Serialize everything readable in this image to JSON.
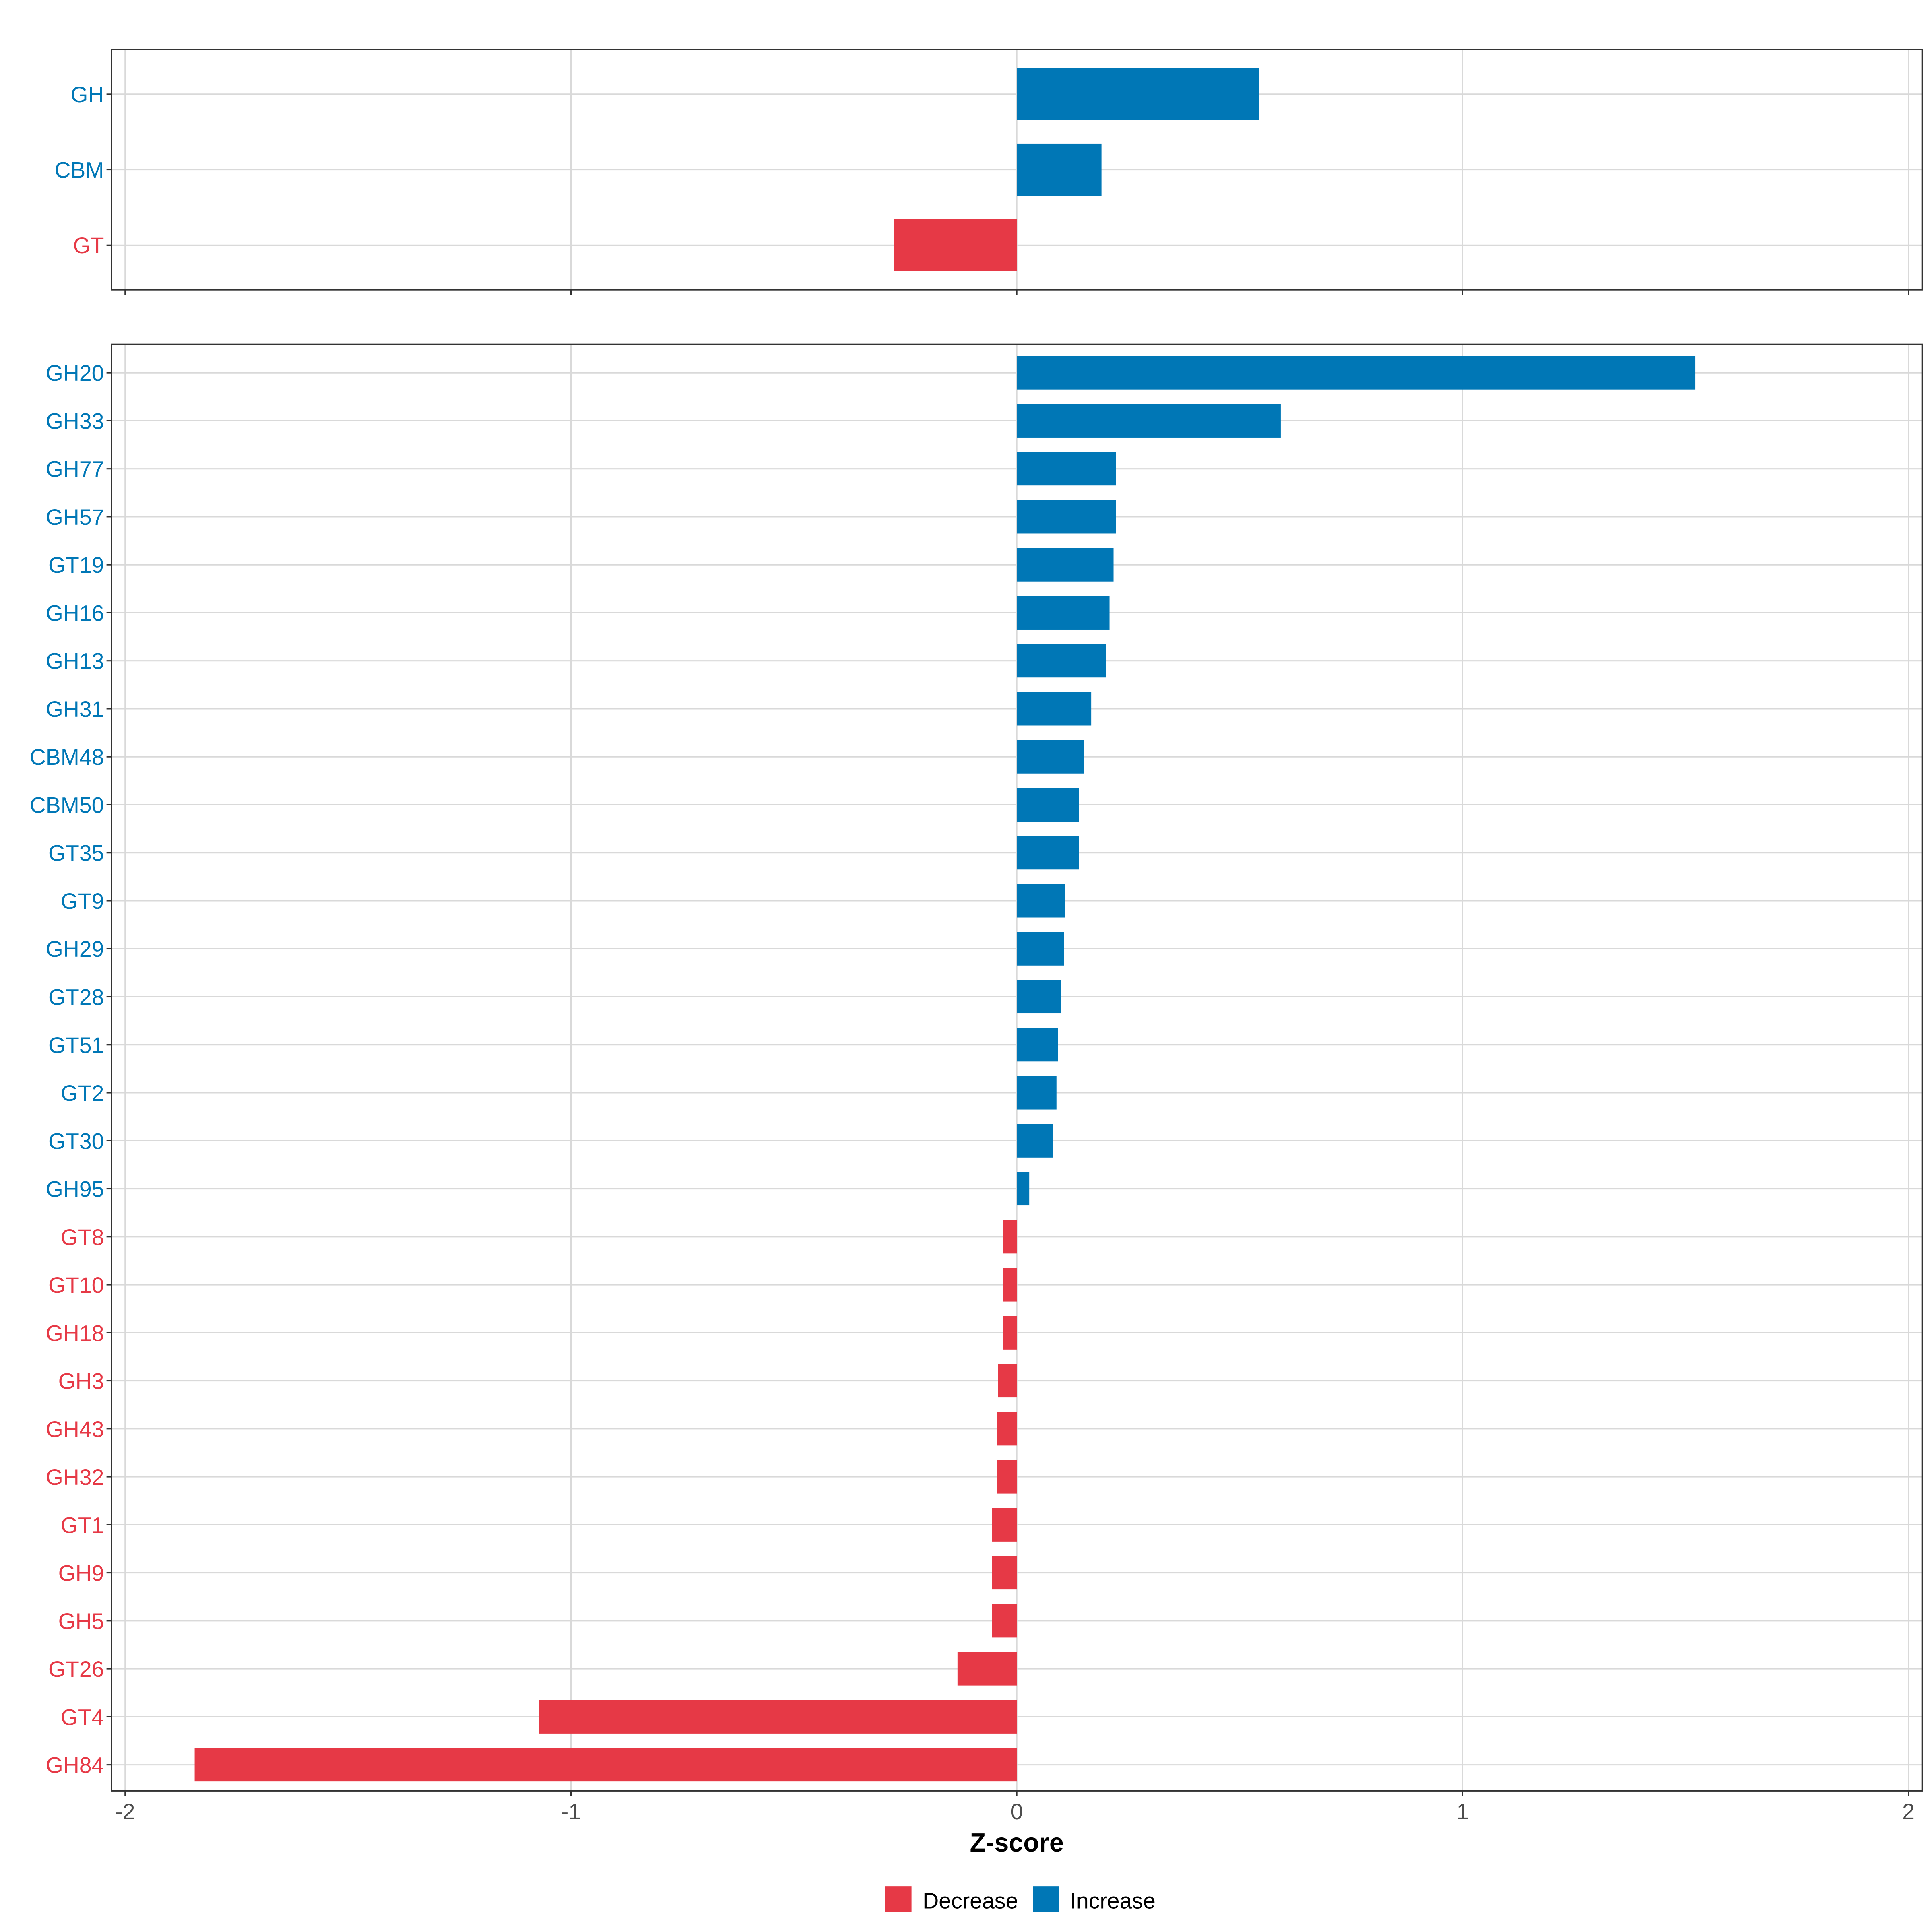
{
  "chart_data": [
    {
      "type": "bar",
      "orientation": "horizontal",
      "panel": "top",
      "categories": [
        "GH",
        "CBM",
        "GT"
      ],
      "values": [
        0.544,
        0.19,
        -0.275
      ],
      "xlim": [
        -2,
        2
      ],
      "xticks": [
        -2,
        -1,
        0,
        1,
        2
      ],
      "show_tick_labels": false,
      "grid": true
    },
    {
      "type": "bar",
      "orientation": "horizontal",
      "panel": "bottom",
      "categories": [
        "GH20",
        "GH33",
        "GH77",
        "GH57",
        "GT19",
        "GH16",
        "GH13",
        "GH31",
        "CBM48",
        "CBM50",
        "GT35",
        "GT9",
        "GH29",
        "GT28",
        "GT51",
        "GT2",
        "GT30",
        "GH95",
        "GT8",
        "GT10",
        "GH18",
        "GH3",
        "GH43",
        "GH32",
        "GT1",
        "GH9",
        "GH5",
        "GT26",
        "GT4",
        "GH84"
      ],
      "values": [
        1.522,
        0.592,
        0.222,
        0.222,
        0.217,
        0.208,
        0.2,
        0.167,
        0.15,
        0.139,
        0.139,
        0.108,
        0.106,
        0.1,
        0.092,
        0.089,
        0.081,
        0.028,
        -0.031,
        -0.031,
        -0.031,
        -0.042,
        -0.044,
        -0.044,
        -0.056,
        -0.056,
        -0.056,
        -0.133,
        -1.072,
        -1.844
      ],
      "xlim": [
        -2,
        2
      ],
      "xticks": [
        -2,
        -1,
        0,
        1,
        2
      ],
      "xtick_labels": [
        "-2",
        "-1",
        "0",
        "1",
        "2"
      ],
      "xlabel": "Z-score",
      "grid": true
    }
  ],
  "legend": {
    "placement": "bottom",
    "items": [
      {
        "label": "Decrease",
        "color": "#E63946"
      },
      {
        "label": "Increase",
        "color": "#0077B6"
      }
    ]
  },
  "colors": {
    "increase": "#0077B6",
    "decrease": "#E63946",
    "grid": "#D9D9D9"
  }
}
